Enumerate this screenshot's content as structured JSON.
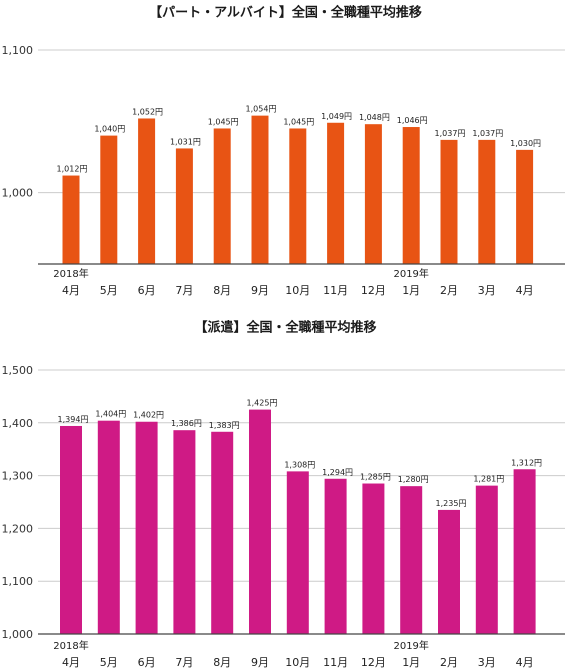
{
  "chart_data": [
    {
      "type": "bar",
      "title": "【パート・アルバイト】全国・全職種平均推移",
      "categories": [
        "4月",
        "5月",
        "6月",
        "7月",
        "8月",
        "9月",
        "10月",
        "11月",
        "12月",
        "1月",
        "2月",
        "3月",
        "4月"
      ],
      "year_labels": [
        {
          "index": 0,
          "label": "2018年"
        },
        {
          "index": 9,
          "label": "2019年"
        }
      ],
      "values": [
        1012,
        1040,
        1052,
        1031,
        1045,
        1054,
        1045,
        1049,
        1048,
        1046,
        1037,
        1037,
        1030
      ],
      "value_labels": [
        "1,012円",
        "1,040円",
        "1,052円",
        "1,031円",
        "1,045円",
        "1,054円",
        "1,045円",
        "1,049円",
        "1,048円",
        "1,046円",
        "1,037円",
        "1,037円",
        "1,030円"
      ],
      "ylim": [
        950,
        1100
      ],
      "yticks": [
        {
          "value": 1000,
          "label": "1,000"
        },
        {
          "value": 1100,
          "label": "1,100"
        }
      ],
      "grid": true,
      "color": "#e85414"
    },
    {
      "type": "bar",
      "title": "【派遣】全国・全職種平均推移",
      "categories": [
        "4月",
        "5月",
        "6月",
        "7月",
        "8月",
        "9月",
        "10月",
        "11月",
        "12月",
        "1月",
        "2月",
        "3月",
        "4月"
      ],
      "year_labels": [
        {
          "index": 0,
          "label": "2018年"
        },
        {
          "index": 9,
          "label": "2019年"
        }
      ],
      "values": [
        1394,
        1404,
        1402,
        1386,
        1383,
        1425,
        1308,
        1294,
        1285,
        1280,
        1235,
        1281,
        1312
      ],
      "value_labels": [
        "1,394円",
        "1,404円",
        "1,402円",
        "1,386円",
        "1,383円",
        "1,425円",
        "1,308円",
        "1,294円",
        "1,285円",
        "1,280円",
        "1,235円",
        "1,281円",
        "1,312円"
      ],
      "ylim": [
        1000,
        1500
      ],
      "yticks": [
        {
          "value": 1000,
          "label": "1,000"
        },
        {
          "value": 1100,
          "label": "1,100"
        },
        {
          "value": 1200,
          "label": "1,200"
        },
        {
          "value": 1300,
          "label": "1,300"
        },
        {
          "value": 1400,
          "label": "1,400"
        },
        {
          "value": 1500,
          "label": "1,500"
        }
      ],
      "grid": true,
      "color": "#cf1a85"
    }
  ]
}
